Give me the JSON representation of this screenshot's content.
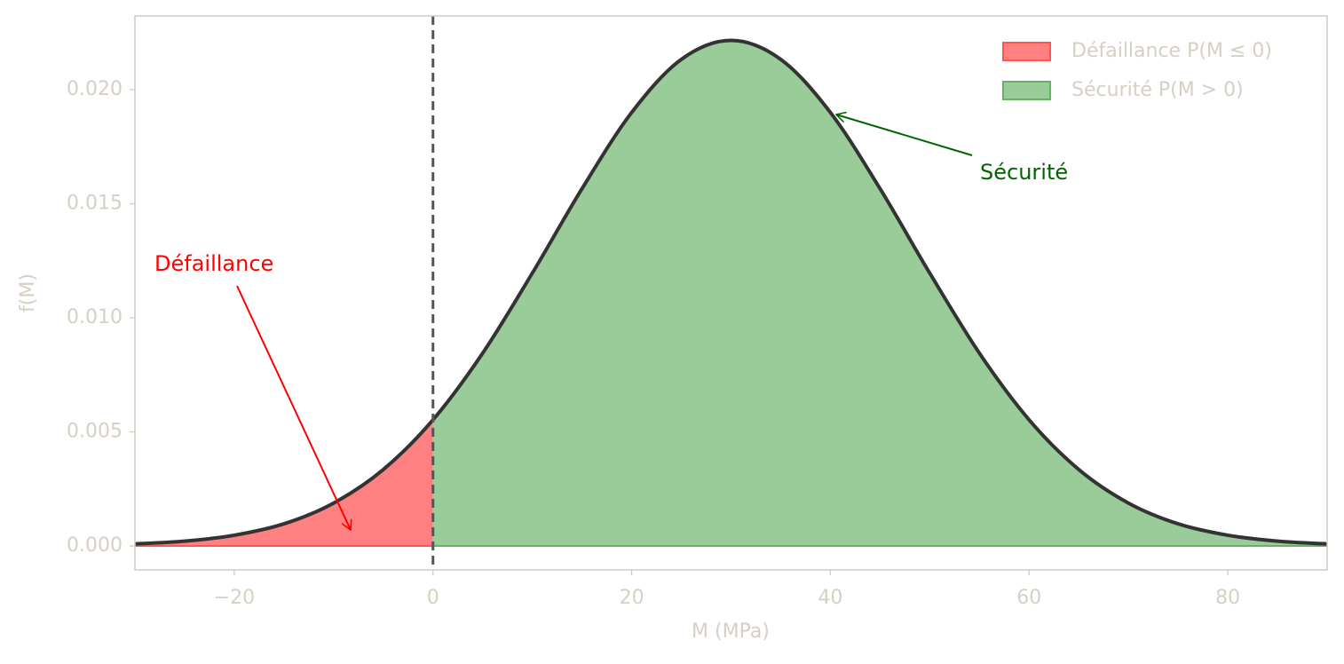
{
  "chart_data": {
    "type": "area",
    "x_label": "M (MPa)",
    "y_label": "f(M)",
    "x": [
      -30,
      -25,
      -20,
      -15,
      -10,
      -5,
      0,
      5,
      10,
      15,
      20,
      25,
      30,
      35,
      40,
      45,
      50,
      55,
      60,
      65,
      70,
      75,
      80,
      85,
      90
    ],
    "values": [
      9e-05,
      0.00021,
      0.00047,
      0.00097,
      0.00188,
      0.00335,
      0.00553,
      0.00845,
      0.01196,
      0.01566,
      0.019,
      0.02133,
      0.02216,
      0.02133,
      0.019,
      0.01566,
      0.01196,
      0.00845,
      0.00553,
      0.00335,
      0.00188,
      0.00097,
      0.00047,
      0.00021,
      9e-05
    ],
    "line_color": "#333333",
    "threshold": 0,
    "regions": [
      {
        "name": "Défaillance P(M ≤ 0)",
        "color": "#ff8080",
        "edge": "#ff5555"
      },
      {
        "name": "Sécurité P(M > 0)",
        "color": "#99cc99",
        "edge": "#66b366"
      }
    ],
    "annotations": [
      {
        "text": "Défaillance",
        "color": "#ff0000"
      },
      {
        "text": "Sécurité",
        "color": "#006400"
      }
    ],
    "xlim": [
      -30,
      90
    ],
    "xticks": [
      {
        "value": -20,
        "label": "−20"
      },
      0,
      20,
      40,
      60,
      80
    ],
    "ylim": [
      -0.00105,
      0.02323
    ],
    "yticks": [
      {
        "value": 0,
        "label": "0.000"
      },
      {
        "value": 0.005,
        "label": "0.005"
      },
      {
        "value": 0.01,
        "label": "0.010"
      },
      {
        "value": 0.015,
        "label": "0.015"
      },
      {
        "value": 0.02,
        "label": "0.020"
      }
    ],
    "legend": "upper right"
  }
}
